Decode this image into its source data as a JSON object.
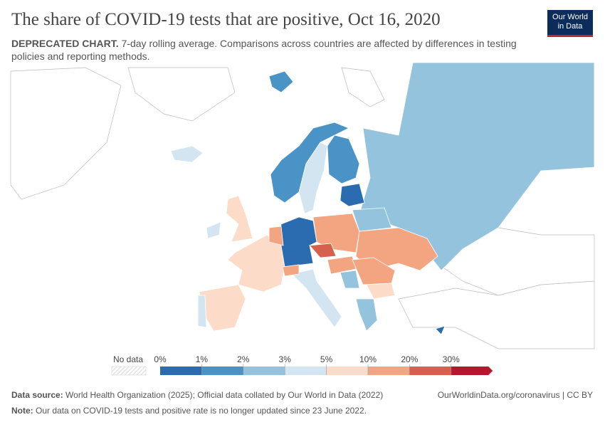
{
  "header": {
    "title": "The share of COVID-19 tests that are positive, Oct 16, 2020",
    "subtitle_bold": "DEPRECATED CHART.",
    "subtitle": "7-day rolling average. Comparisons across countries are affected by differences in testing policies and reporting methods.",
    "logo": [
      "Our World",
      "in Data"
    ]
  },
  "legend": {
    "no_data": "No data",
    "labels": [
      "0%",
      "1%",
      "2%",
      "3%",
      "5%",
      "10%",
      "20%",
      "30%"
    ],
    "colors": [
      "#2b6cb0",
      "#4a93c6",
      "#94c3de",
      "#d2e5f0",
      "#fcdcc8",
      "#f3a582",
      "#d6604e",
      "#b3192c"
    ]
  },
  "footer": {
    "source_label": "Data source:",
    "source": "World Health Organization (2025); Official data collated by Our World in Data (2022)",
    "link": "OurWorldinData.org/coronavirus | CC BY",
    "note_label": "Note:",
    "note": "Our data on COVID-19 tests and positive rate is no longer updated since 23 June 2022."
  }
}
